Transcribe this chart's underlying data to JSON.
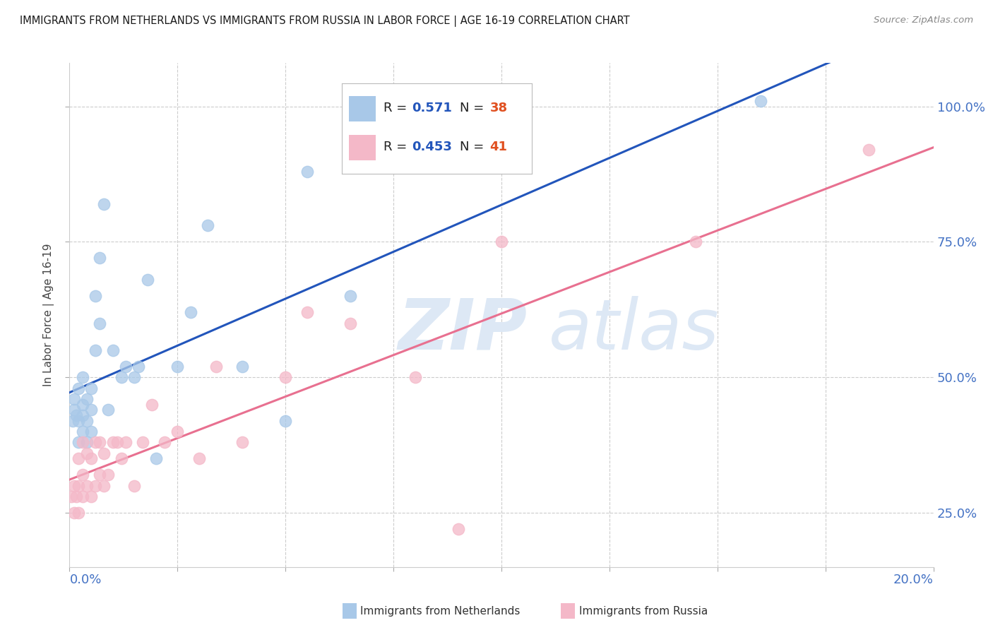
{
  "title": "IMMIGRANTS FROM NETHERLANDS VS IMMIGRANTS FROM RUSSIA IN LABOR FORCE | AGE 16-19 CORRELATION CHART",
  "source": "Source: ZipAtlas.com",
  "ylabel": "In Labor Force | Age 16-19",
  "legend_netherlands": "Immigrants from Netherlands",
  "legend_russia": "Immigrants from Russia",
  "R_netherlands": 0.571,
  "N_netherlands": 38,
  "R_russia": 0.453,
  "N_russia": 41,
  "color_netherlands": "#a8c8e8",
  "color_russia": "#f4b8c8",
  "line_color_netherlands": "#2255bb",
  "line_color_russia": "#e87090",
  "watermark_zip": "ZIP",
  "watermark_atlas": "atlas",
  "watermark_color": "#dde8f5",
  "xlim": [
    0.0,
    0.2
  ],
  "ylim": [
    0.15,
    1.08
  ],
  "y_ticks": [
    0.25,
    0.5,
    0.75,
    1.0
  ],
  "x_ticks": [
    0.0,
    0.025,
    0.05,
    0.075,
    0.1,
    0.125,
    0.15,
    0.175,
    0.2
  ],
  "netherlands_x": [
    0.0008,
    0.001,
    0.001,
    0.0015,
    0.002,
    0.002,
    0.002,
    0.003,
    0.003,
    0.003,
    0.003,
    0.004,
    0.004,
    0.004,
    0.005,
    0.005,
    0.005,
    0.006,
    0.006,
    0.007,
    0.007,
    0.008,
    0.009,
    0.01,
    0.012,
    0.013,
    0.015,
    0.016,
    0.018,
    0.02,
    0.025,
    0.028,
    0.032,
    0.04,
    0.05,
    0.055,
    0.065,
    0.16
  ],
  "netherlands_y": [
    0.42,
    0.44,
    0.46,
    0.43,
    0.38,
    0.42,
    0.48,
    0.4,
    0.43,
    0.45,
    0.5,
    0.38,
    0.42,
    0.46,
    0.4,
    0.44,
    0.48,
    0.55,
    0.65,
    0.6,
    0.72,
    0.82,
    0.44,
    0.55,
    0.5,
    0.52,
    0.5,
    0.52,
    0.68,
    0.35,
    0.52,
    0.62,
    0.78,
    0.52,
    0.42,
    0.88,
    0.65,
    1.01
  ],
  "russia_x": [
    0.0005,
    0.001,
    0.001,
    0.0015,
    0.002,
    0.002,
    0.002,
    0.003,
    0.003,
    0.003,
    0.004,
    0.004,
    0.005,
    0.005,
    0.006,
    0.006,
    0.007,
    0.007,
    0.008,
    0.008,
    0.009,
    0.01,
    0.011,
    0.012,
    0.013,
    0.015,
    0.017,
    0.019,
    0.022,
    0.025,
    0.03,
    0.034,
    0.04,
    0.05,
    0.055,
    0.065,
    0.08,
    0.09,
    0.1,
    0.145,
    0.185
  ],
  "russia_y": [
    0.28,
    0.25,
    0.3,
    0.28,
    0.25,
    0.3,
    0.35,
    0.28,
    0.32,
    0.38,
    0.3,
    0.36,
    0.28,
    0.35,
    0.3,
    0.38,
    0.32,
    0.38,
    0.3,
    0.36,
    0.32,
    0.38,
    0.38,
    0.35,
    0.38,
    0.3,
    0.38,
    0.45,
    0.38,
    0.4,
    0.35,
    0.52,
    0.38,
    0.5,
    0.62,
    0.6,
    0.5,
    0.22,
    0.75,
    0.75,
    0.92
  ]
}
